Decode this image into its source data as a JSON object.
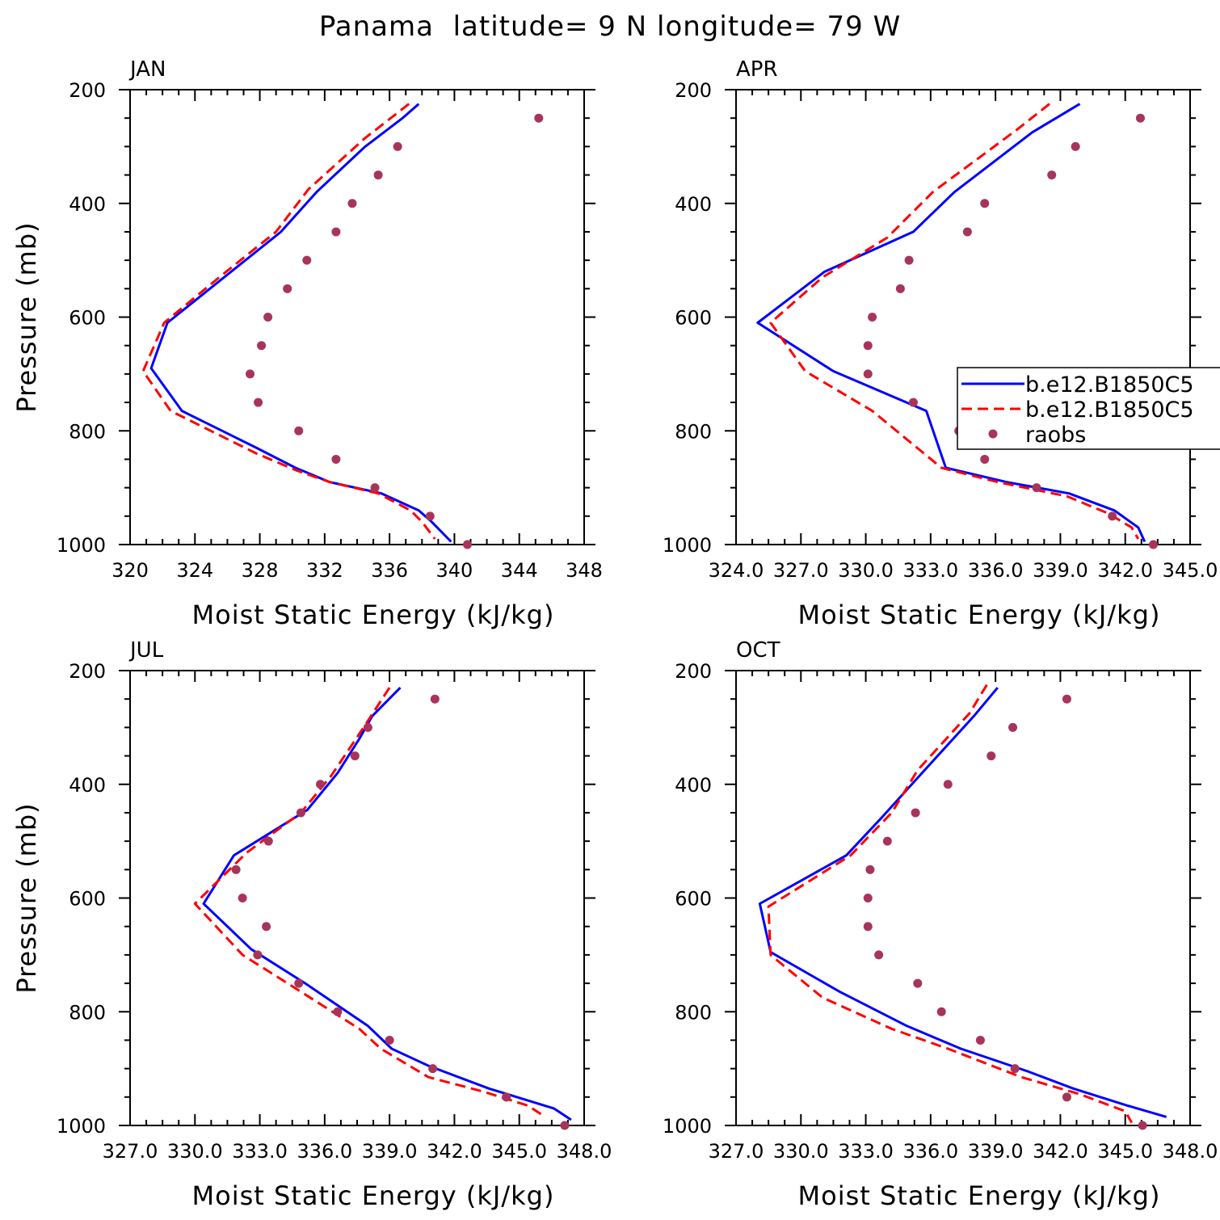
{
  "title": "Panama  latitude= 9 N longitude= 79 W",
  "colors": {
    "model1": "#0000ff",
    "model2": "#ff0000",
    "raobs": "#a8345a",
    "axes": "#000000"
  },
  "legend": {
    "entries": [
      {
        "label": "b.e12.B1850C5",
        "style": "solid-blue"
      },
      {
        "label": "b.e12.B1850C5",
        "style": "dashed-red"
      },
      {
        "label": "raobs",
        "style": "dot"
      }
    ]
  },
  "chart_data": [
    {
      "type": "line",
      "panel": "JAN",
      "xlabel": "Moist Static Energy (kJ/kg)",
      "ylabel": "Pressure (mb)",
      "xlim": [
        320,
        348
      ],
      "xticks": [
        "320",
        "324",
        "328",
        "332",
        "336",
        "340",
        "344",
        "348"
      ],
      "ylim": [
        200,
        1000
      ],
      "yticks": [
        "200",
        "400",
        "600",
        "800",
        "1000"
      ],
      "y_reversed": true,
      "series": [
        {
          "style": "solid-blue",
          "pressure": [
            225,
            250,
            300,
            380,
            450,
            530,
            610,
            690,
            765,
            830,
            865,
            890,
            910,
            940,
            960,
            995
          ],
          "mse": [
            337.8,
            336.8,
            334.5,
            331.5,
            329.3,
            325.8,
            322.3,
            321.3,
            323.2,
            327.8,
            330.2,
            332.3,
            335.5,
            337.8,
            338.6,
            339.8
          ]
        },
        {
          "style": "dashed-red",
          "pressure": [
            225,
            285,
            375,
            450,
            530,
            610,
            695,
            765,
            840,
            870,
            890,
            910,
            940,
            960,
            990
          ],
          "mse": [
            337.2,
            334.5,
            331.0,
            329.0,
            325.5,
            322.1,
            320.8,
            322.5,
            327.8,
            330.3,
            332.3,
            335.3,
            337.3,
            338.0,
            338.8
          ]
        },
        {
          "style": "dot",
          "name": "raobs",
          "pressure": [
            250,
            300,
            350,
            400,
            450,
            500,
            550,
            600,
            650,
            700,
            750,
            800,
            850,
            900,
            950,
            1000
          ],
          "mse": [
            345.2,
            336.5,
            335.3,
            333.7,
            332.7,
            330.9,
            329.7,
            328.5,
            328.1,
            327.4,
            327.9,
            330.4,
            332.7,
            335.1,
            338.5,
            340.8
          ]
        }
      ]
    },
    {
      "type": "line",
      "panel": "APR",
      "xlabel": "Moist Static Energy (kJ/kg)",
      "ylabel": "",
      "xlim": [
        324.0,
        345.0
      ],
      "xticks": [
        "324.0",
        "327.0",
        "330.0",
        "333.0",
        "336.0",
        "339.0",
        "342.0",
        "345.0"
      ],
      "ylim": [
        200,
        1000
      ],
      "yticks": [
        "200",
        "400",
        "600",
        "800",
        "1000"
      ],
      "y_reversed": true,
      "series": [
        {
          "style": "solid-blue",
          "pressure": [
            225,
            275,
            380,
            450,
            520,
            610,
            695,
            765,
            865,
            890,
            910,
            940,
            970,
            995
          ],
          "mse": [
            339.9,
            337.7,
            334.1,
            332.2,
            328.1,
            325.0,
            328.5,
            332.8,
            333.7,
            336.5,
            339.4,
            341.5,
            342.6,
            342.9
          ]
        },
        {
          "style": "dashed-red",
          "pressure": [
            225,
            270,
            380,
            460,
            530,
            610,
            695,
            765,
            865,
            890,
            915,
            945,
            970,
            990
          ],
          "mse": [
            338.5,
            337.0,
            333.1,
            331.0,
            328.0,
            325.6,
            327.2,
            330.3,
            333.5,
            336.1,
            339.3,
            341.2,
            342.3,
            342.6
          ]
        },
        {
          "style": "dot",
          "name": "raobs",
          "pressure": [
            250,
            300,
            350,
            400,
            450,
            500,
            550,
            600,
            650,
            700,
            750,
            800,
            850,
            900,
            950,
            1000
          ],
          "mse": [
            342.7,
            339.7,
            338.6,
            335.5,
            334.7,
            332.0,
            331.6,
            330.3,
            330.1,
            330.1,
            332.2,
            334.3,
            335.5,
            337.9,
            341.4,
            343.3
          ]
        }
      ]
    },
    {
      "type": "line",
      "panel": "JUL",
      "xlabel": "Moist Static Energy (kJ/kg)",
      "ylabel": "Pressure (mb)",
      "xlim": [
        327.0,
        348.0
      ],
      "xticks": [
        "327.0",
        "330.0",
        "333.0",
        "336.0",
        "339.0",
        "342.0",
        "345.0",
        "348.0"
      ],
      "ylim": [
        200,
        1000
      ],
      "yticks": [
        "200",
        "400",
        "600",
        "800",
        "1000"
      ],
      "y_reversed": true,
      "series": [
        {
          "style": "solid-blue",
          "pressure": [
            230,
            280,
            320,
            380,
            445,
            525,
            610,
            690,
            750,
            825,
            865,
            895,
            935,
            970,
            990
          ],
          "mse": [
            339.5,
            338.2,
            337.6,
            336.6,
            335.2,
            331.8,
            330.4,
            332.6,
            335.1,
            338.0,
            339.1,
            340.8,
            343.6,
            346.6,
            347.4
          ]
        },
        {
          "style": "dashed-red",
          "pressure": [
            230,
            300,
            385,
            450,
            520,
            610,
            700,
            760,
            830,
            865,
            915,
            940,
            965,
            985
          ],
          "mse": [
            339.0,
            337.8,
            336.3,
            334.9,
            332.4,
            330.0,
            332.2,
            334.7,
            337.6,
            338.6,
            340.8,
            343.3,
            345.4,
            346.2
          ]
        },
        {
          "style": "dot",
          "name": "raobs",
          "pressure": [
            250,
            300,
            350,
            400,
            450,
            500,
            550,
            600,
            650,
            700,
            750,
            800,
            850,
            900,
            950,
            1000
          ],
          "mse": [
            341.1,
            338.0,
            337.4,
            335.8,
            334.9,
            333.4,
            331.9,
            332.2,
            333.3,
            332.9,
            334.8,
            336.6,
            339.0,
            341.0,
            344.4,
            347.1
          ]
        }
      ]
    },
    {
      "type": "line",
      "panel": "OCT",
      "xlabel": "Moist Static Energy (kJ/kg)",
      "ylabel": "",
      "xlim": [
        327.0,
        348.0
      ],
      "xticks": [
        "327.0",
        "330.0",
        "333.0",
        "336.0",
        "339.0",
        "342.0",
        "345.0",
        "348.0"
      ],
      "ylim": [
        200,
        1000
      ],
      "yticks": [
        "200",
        "400",
        "600",
        "800",
        "1000"
      ],
      "y_reversed": true,
      "series": [
        {
          "style": "solid-blue",
          "pressure": [
            230,
            280,
            380,
            460,
            525,
            610,
            695,
            765,
            825,
            865,
            905,
            935,
            965,
            985
          ],
          "mse": [
            339.1,
            338.0,
            335.6,
            333.7,
            332.1,
            328.1,
            328.6,
            331.8,
            334.9,
            337.4,
            340.5,
            342.6,
            345.1,
            346.9
          ]
        },
        {
          "style": "dashed-red",
          "pressure": [
            225,
            275,
            375,
            450,
            525,
            615,
            700,
            775,
            830,
            865,
            915,
            945,
            975,
            995
          ],
          "mse": [
            338.6,
            337.8,
            335.4,
            334.2,
            332.3,
            328.5,
            328.6,
            331.0,
            334.2,
            336.8,
            340.2,
            342.9,
            345.0,
            345.3
          ]
        },
        {
          "style": "dot",
          "name": "raobs",
          "pressure": [
            250,
            300,
            350,
            400,
            450,
            500,
            550,
            600,
            650,
            700,
            750,
            800,
            850,
            900,
            950,
            1000
          ],
          "mse": [
            342.3,
            339.8,
            338.8,
            336.8,
            335.3,
            334.0,
            333.2,
            333.1,
            333.1,
            333.6,
            335.4,
            336.5,
            338.3,
            339.9,
            342.3,
            345.8
          ]
        }
      ]
    }
  ]
}
